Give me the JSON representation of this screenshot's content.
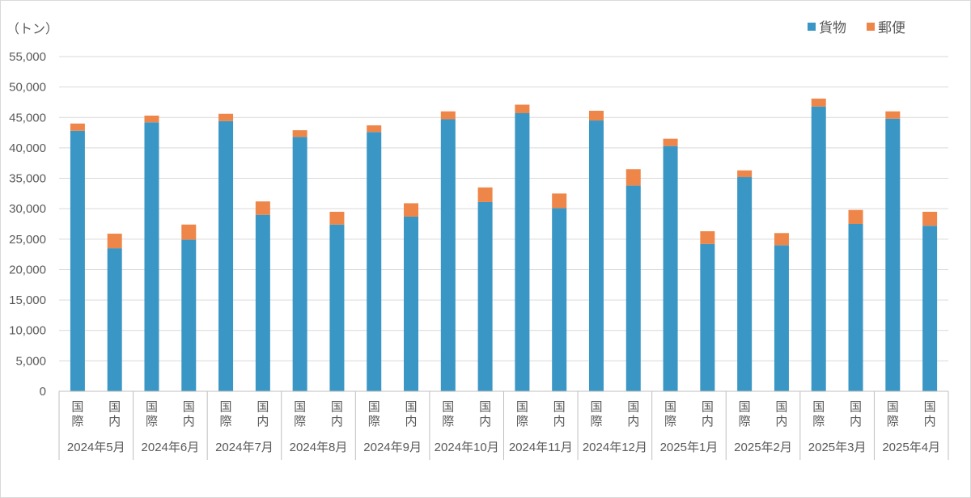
{
  "chart_data": {
    "type": "bar",
    "stacked": true,
    "unit_label": "（トン）",
    "ylim": [
      0,
      55000
    ],
    "yticks": [
      "0",
      "5,000",
      "10,000",
      "15,000",
      "20,000",
      "25,000",
      "30,000",
      "35,000",
      "40,000",
      "45,000",
      "50,000",
      "55,000"
    ],
    "grid": true,
    "legend_position": "top-right",
    "colors": {
      "貨物": "#3a96c4",
      "郵便": "#ee8649"
    },
    "groups": [
      "2024年5月",
      "2024年6月",
      "2024年7月",
      "2024年8月",
      "2024年9月",
      "2024年10月",
      "2024年11月",
      "2024年12月",
      "2025年1月",
      "2025年2月",
      "2025年3月",
      "2025年4月"
    ],
    "subcategories": [
      "国際",
      "国内"
    ],
    "series": [
      {
        "name": "貨物",
        "values": [
          42800,
          23500,
          44200,
          24900,
          44400,
          29000,
          41800,
          27400,
          42600,
          28700,
          44700,
          31100,
          45700,
          30100,
          44500,
          33800,
          40300,
          24200,
          35200,
          24000,
          46800,
          27500,
          44800,
          27200
        ]
      },
      {
        "name": "郵便",
        "values": [
          1200,
          2400,
          1100,
          2500,
          1200,
          2200,
          1100,
          2100,
          1100,
          2200,
          1300,
          2400,
          1400,
          2400,
          1600,
          2700,
          1200,
          2100,
          1100,
          2000,
          1300,
          2300,
          1200,
          2300
        ]
      }
    ]
  }
}
